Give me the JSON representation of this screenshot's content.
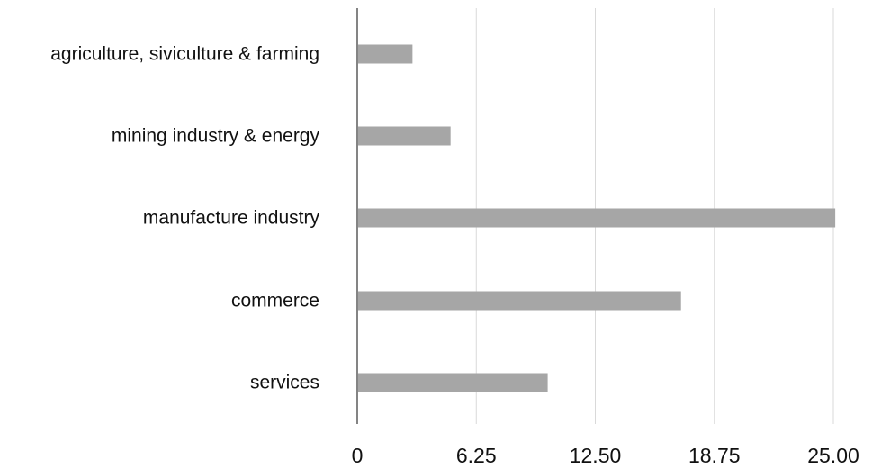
{
  "chart_data": {
    "type": "bar",
    "orientation": "horizontal",
    "title": "",
    "xlabel": "",
    "ylabel": "",
    "categories": [
      "agriculture, siviculture & farming",
      "mining industry & energy",
      "manufacture industry",
      "commerce",
      "services"
    ],
    "values": [
      2.9,
      4.9,
      25.1,
      17.0,
      10.0
    ],
    "xlim": [
      0,
      25
    ],
    "x_ticks": [
      0,
      6.25,
      12.5,
      18.75,
      25
    ],
    "x_tick_labels": [
      "0",
      "6.25",
      "12.50",
      "18.75",
      "25.00"
    ],
    "grid": "vertical",
    "legend": "none",
    "colors": {
      "bar": "#a6a6a6",
      "grid": "#d9d9d9",
      "axis": "#333333",
      "text": "#111111"
    }
  }
}
